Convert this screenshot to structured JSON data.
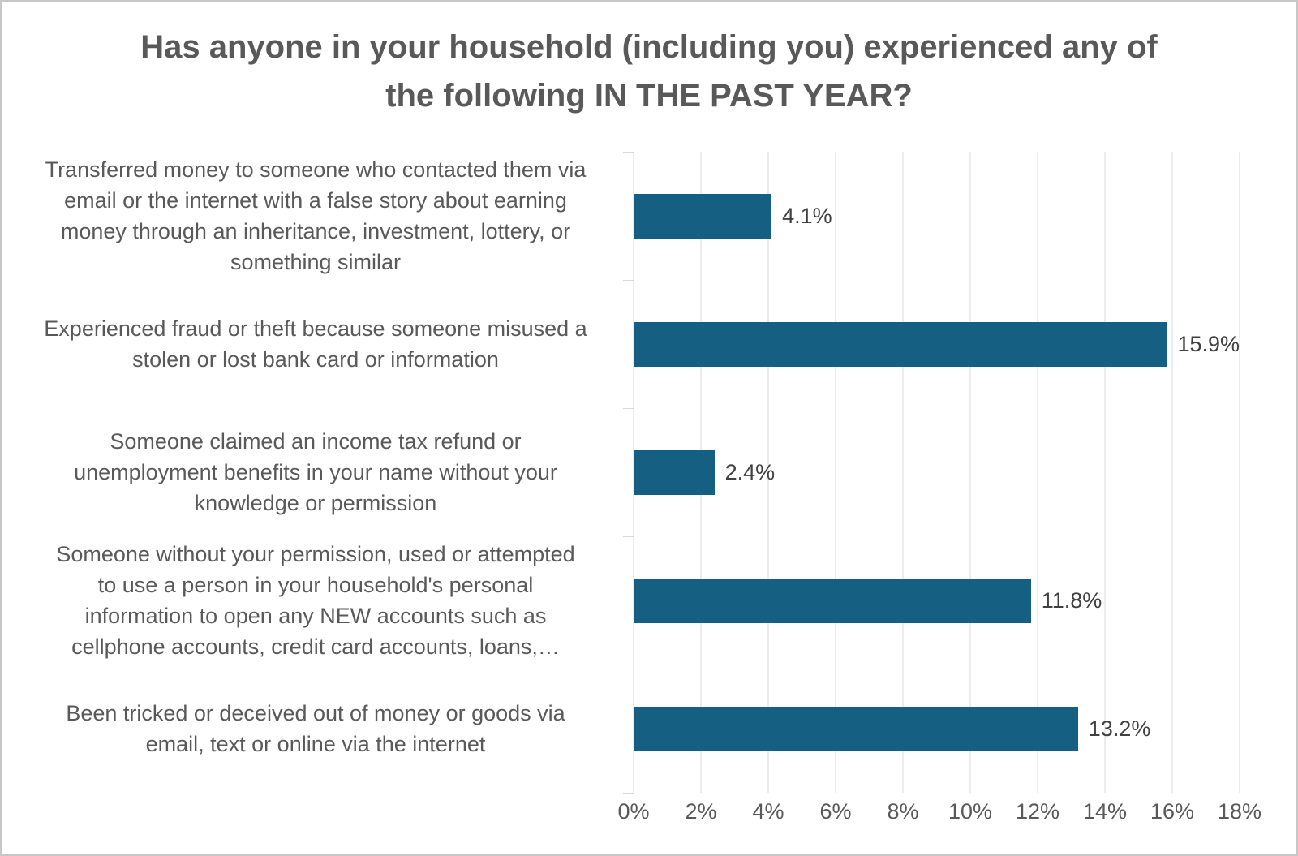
{
  "frame": {
    "background": "#ffffff",
    "border_color": "#c7c7c7"
  },
  "chart_data": {
    "type": "bar",
    "orientation": "horizontal",
    "title": "Has anyone in your household (including you) experienced any of\nthe following IN THE PAST YEAR?",
    "categories": [
      "Transferred money to someone who contacted them via\nemail or the internet with a false story about earning\nmoney through an inheritance, investment, lottery, or\nsomething similar",
      "Experienced fraud or theft because someone misused a\nstolen or lost bank card or information",
      "Someone claimed an income tax refund or\nunemployment benefits in your name without your\nknowledge or permission",
      "Someone without your permission, used or attempted\nto use a person in your household's personal\ninformation to open any NEW accounts such as\ncellphone accounts, credit card accounts, loans,…",
      "Been tricked or deceived out of money or goods via\nemail, text or online via the internet"
    ],
    "values": [
      4.1,
      15.9,
      2.4,
      11.8,
      13.2
    ],
    "data_labels": [
      "4.1%",
      "15.9%",
      "2.4%",
      "11.8%",
      "13.2%"
    ],
    "x_axis": {
      "min": 0,
      "max": 18,
      "tick_step": 2,
      "tick_labels": [
        "0%",
        "2%",
        "4%",
        "6%",
        "8%",
        "10%",
        "12%",
        "14%",
        "16%",
        "18%"
      ]
    },
    "grid": "vertical-major",
    "legend": "none",
    "colors": {
      "bar": "#156082",
      "gridline": "#d9d9d9",
      "title_text": "#595959",
      "category_text": "#595959",
      "value_text": "#404040"
    }
  }
}
